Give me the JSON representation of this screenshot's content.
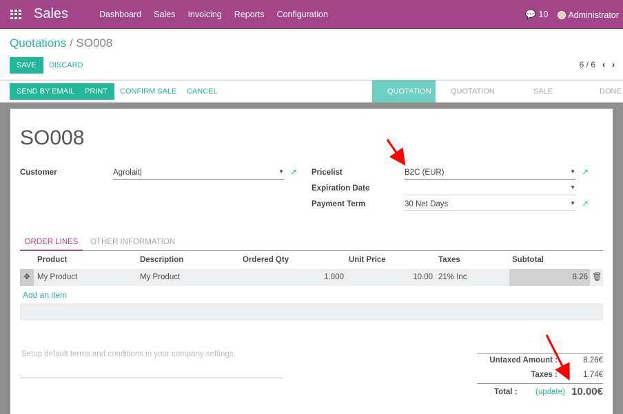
{
  "nav": {
    "brand": "Sales",
    "menu": [
      "Dashboard",
      "Sales",
      "Invoicing",
      "Reports",
      "Configuration"
    ],
    "messages": "10",
    "user": "Administrator"
  },
  "breadcrumb": {
    "parent": "Quotations",
    "current": "SO008"
  },
  "controls": {
    "save": "SAVE",
    "discard": "DISCARD",
    "pager": "6 / 6"
  },
  "actions": {
    "send": "SEND BY EMAIL",
    "print": "PRINT",
    "confirm": "CONFIRM SALE",
    "cancel": "CANCEL"
  },
  "status": {
    "steps": [
      "QUOTATION",
      "QUOTATION SENT",
      "SALE ORDER",
      "DONE"
    ],
    "active": "QUOTATION"
  },
  "form": {
    "name": "SO008",
    "customer_label": "Customer",
    "customer": "Agrolait",
    "pricelist_label": "Pricelist",
    "pricelist": "B2C (EUR)",
    "expiration_label": "Expiration Date",
    "expiration": "",
    "payment_label": "Payment Term",
    "payment": "30 Net Days"
  },
  "tabs": [
    "ORDER LINES",
    "OTHER INFORMATION"
  ],
  "table": {
    "headers": [
      "Product",
      "Description",
      "Ordered Qty",
      "Unit Price",
      "Taxes",
      "Subtotal"
    ],
    "rows": [
      {
        "product": "My Product",
        "description": "My Product",
        "qty": "1.000",
        "price": "10.00",
        "taxes": "21% Inc",
        "subtotal": "8.26"
      }
    ],
    "add": "Add an item"
  },
  "notes_placeholder": "Setup default terms and conditions in your company settings.",
  "totals": {
    "untaxed_label": "Untaxed Amount :",
    "untaxed": "8.26€",
    "taxes_label": "Taxes :",
    "taxes": "1.74€",
    "total_label": "Total :",
    "update": "(update)",
    "total": "10.00€"
  },
  "colors": {
    "brand": "#a24689",
    "accent": "#21b799",
    "annotation": "#ff0000"
  }
}
